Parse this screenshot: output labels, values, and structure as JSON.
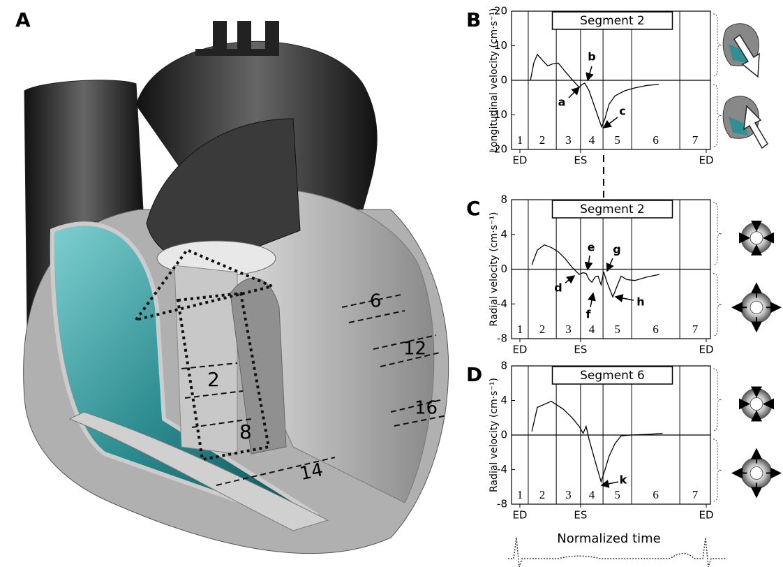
{
  "heart": {
    "panel": "A",
    "segments": [
      "2",
      "8",
      "6",
      "12",
      "16",
      "14"
    ]
  },
  "chart_data": [
    {
      "type": "line",
      "panel": "B",
      "title": "Segment 2",
      "ylabel": "Longitudinal velocity (cm·s⁻¹)",
      "x": [
        0.095,
        0.112,
        0.13,
        0.16,
        0.182,
        0.21,
        0.235,
        0.27,
        0.3,
        0.34,
        0.355,
        0.368,
        0.39,
        0.42,
        0.453,
        0.47,
        0.49,
        0.52,
        0.57,
        0.62,
        0.68,
        0.74
      ],
      "values": [
        0,
        5,
        7.5,
        5.5,
        4.2,
        4.8,
        5,
        2.5,
        0.5,
        -2,
        -1.2,
        -0.8,
        -3,
        -8,
        -13.5,
        -11,
        -7,
        -4.5,
        -3,
        -2.2,
        -1.5,
        -1.2
      ],
      "color": "#000000",
      "xlim": [
        0,
        1
      ],
      "ylim": [
        -20,
        20
      ],
      "yticks": [
        -20,
        -10,
        0,
        10,
        20
      ],
      "xticks": [
        {
          "value": 0.042,
          "label": "ED"
        },
        {
          "value": 0.347,
          "label": "ES"
        },
        {
          "value": 0.979,
          "label": "ED"
        }
      ],
      "phase_bounds": [
        0.084,
        0.225,
        0.347,
        0.46,
        0.604,
        0.846
      ],
      "phases": [
        "1",
        "2",
        "3",
        "4",
        "5",
        "6",
        "7"
      ],
      "annotations": [
        "a",
        "b",
        "c"
      ]
    },
    {
      "type": "line",
      "panel": "C",
      "title": "Segment 2",
      "ylabel": "Radial velocity (cm·s⁻¹)",
      "x": [
        0.102,
        0.13,
        0.165,
        0.2,
        0.235,
        0.27,
        0.305,
        0.34,
        0.36,
        0.375,
        0.39,
        0.404,
        0.42,
        0.435,
        0.45,
        0.463,
        0.48,
        0.509,
        0.53,
        0.551,
        0.58,
        0.62,
        0.68,
        0.744
      ],
      "values": [
        0.5,
        2.2,
        2.8,
        2.5,
        2,
        1.2,
        0.2,
        -0.6,
        -0.4,
        -0.5,
        -1.2,
        -1.5,
        -0.9,
        -0.8,
        -1.8,
        -0.3,
        -1.5,
        -3.2,
        -2,
        -0.8,
        -1.2,
        -1.3,
        -0.9,
        -0.6
      ],
      "color": "#000000",
      "xlim": [
        0,
        1
      ],
      "ylim": [
        -8,
        8
      ],
      "yticks": [
        -8,
        -4,
        0,
        4,
        8
      ],
      "xticks": [
        {
          "value": 0.042,
          "label": "ED"
        },
        {
          "value": 0.347,
          "label": "ES"
        },
        {
          "value": 0.979,
          "label": "ED"
        }
      ],
      "phase_bounds": [
        0.084,
        0.225,
        0.347,
        0.46,
        0.604,
        0.846
      ],
      "phases": [
        "1",
        "2",
        "3",
        "4",
        "5",
        "6",
        "7"
      ],
      "annotations": [
        "d",
        "e",
        "f",
        "g",
        "h"
      ]
    },
    {
      "type": "line",
      "panel": "D",
      "title": "Segment 6",
      "ylabel": "Radial velocity (cm·s⁻¹)",
      "xlabel": "Normalized time",
      "x": [
        0.102,
        0.13,
        0.2,
        0.26,
        0.305,
        0.34,
        0.36,
        0.375,
        0.39,
        0.42,
        0.45,
        0.47,
        0.49,
        0.52,
        0.551,
        0.6,
        0.7,
        0.76
      ],
      "values": [
        0.4,
        3.2,
        3.9,
        3,
        2,
        1,
        0.2,
        1,
        -0.5,
        -3,
        -5.4,
        -4,
        -2.5,
        -1,
        -0.1,
        0,
        0.1,
        0.2
      ],
      "color": "#000000",
      "xlim": [
        0,
        1
      ],
      "ylim": [
        -8,
        8
      ],
      "yticks": [
        -8,
        -4,
        0,
        4,
        8
      ],
      "xticks": [
        {
          "value": 0.042,
          "label": "ED"
        },
        {
          "value": 0.347,
          "label": "ES"
        },
        {
          "value": 0.979,
          "label": "ED"
        }
      ],
      "phase_bounds": [
        0.084,
        0.225,
        0.347,
        0.46,
        0.604,
        0.846
      ],
      "phases": [
        "1",
        "2",
        "3",
        "4",
        "5",
        "6",
        "7"
      ],
      "annotations": [
        "k"
      ]
    }
  ]
}
